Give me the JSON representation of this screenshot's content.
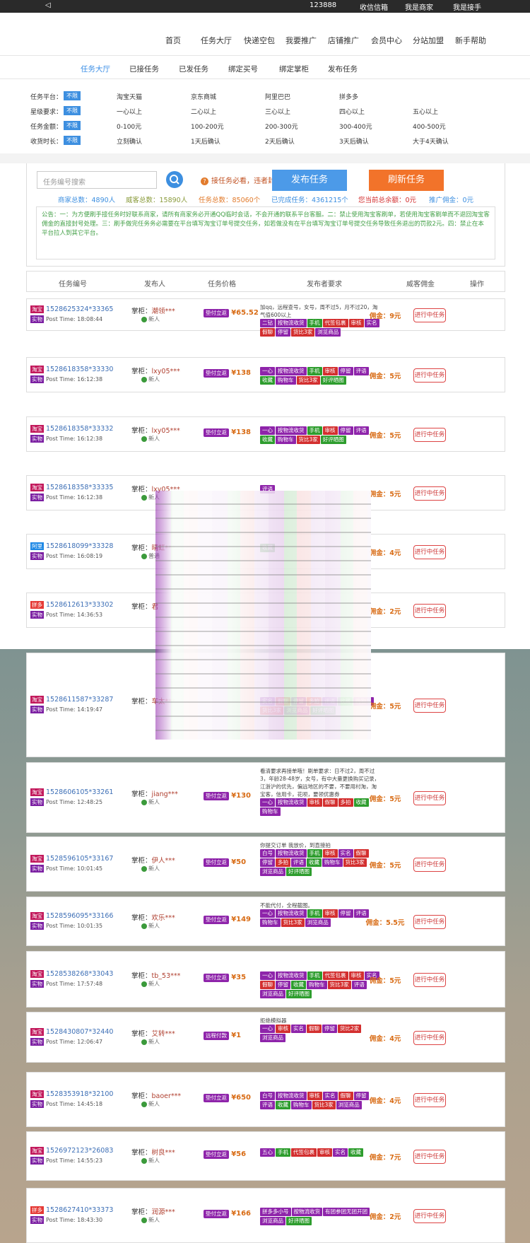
{
  "topbar": {
    "phone": "123888",
    "wechat": "收信信箱",
    "merchant": "我是商家",
    "receiver": "我是接手"
  },
  "nav": [
    "首页",
    "任务大厅",
    "快递空包",
    "我要推广",
    "店铺推广",
    "会员中心",
    "分站加盟",
    "新手帮助"
  ],
  "subnav": [
    "任务大厅",
    "已接任务",
    "已发任务",
    "绑定买号",
    "绑定掌柜",
    "发布任务"
  ],
  "filters": [
    {
      "label": "任务平台：",
      "btn": "不限",
      "opts": [
        "淘宝天猫",
        "京东商城",
        "阿里巴巴",
        "拼多多"
      ]
    },
    {
      "label": "星级要求：",
      "btn": "不限",
      "opts": [
        "一心以上",
        "二心以上",
        "三心以上",
        "四心以上",
        "五心以上"
      ]
    },
    {
      "label": "任务金额：",
      "btn": "不限",
      "opts": [
        "0-100元",
        "100-200元",
        "200-300元",
        "300-400元",
        "400-500元"
      ]
    },
    {
      "label": "收货时长：",
      "btn": "不限",
      "opts": [
        "立刻确认",
        "1天后确认",
        "2天后确认",
        "3天后确认",
        "大于4天确认"
      ]
    }
  ],
  "panel": {
    "search_placeholder": "任务编号搜索",
    "warn": "接任务必看，违者封号",
    "publish": "发布任务",
    "refresh": "刷新任务",
    "stats": [
      "商家总数：4890人",
      "威客总数：15890人",
      "任务总数：85060个",
      "已完成任务：4361215个",
      "您当前总余额：0元",
      "推广佣金：0元"
    ],
    "notice": "公告：一：为方便刷手接任务时好联系商家，请所有商家务必开通QQ临时会话，不会开通的联系平台客服。二：禁止使用淘宝客刷单，若使用淘宝客刷单而不退回淘宝客佣金的直接封号处理。三：刷手做完任务务必需要在平台填写淘宝订单号提交任务，如若做没有在平台填写淘宝订单号提交任务导致任务退出的罚款2元。四：禁止在本平台拉人到其它平台。"
  },
  "thead": [
    "任务编号",
    "发布人",
    "任务价格",
    "发布者要求",
    "威客佣金",
    "操作"
  ],
  "tasks": [
    {
      "plat": "淘宝",
      "type": "实物",
      "no": "1528625324*33365",
      "time": "Post Time: 18:08:44",
      "prefix": "掌柜：",
      "name": "潮领***",
      "level": "新人",
      "pay": "垫付立返",
      "price": "¥65.52",
      "note": "加qq，远程查号，女号，周不过5，月不过20，淘气值600以上",
      "req": [
        [
          "二钻",
          "p"
        ],
        [
          "按物流收货",
          "p"
        ],
        [
          "手机",
          "g"
        ],
        [
          "代签包裹",
          "r"
        ],
        [
          "审核",
          "r"
        ],
        [
          "实名",
          "p"
        ],
        [
          "假聊",
          "r"
        ],
        [
          "停留",
          "p"
        ],
        [
          "货比3家",
          "r"
        ],
        [
          "浏览商品",
          "p"
        ]
      ],
      "com": "佣金：9元",
      "op": "进行中任务"
    },
    {
      "plat": "淘宝",
      "type": "实物",
      "no": "1528618358*33330",
      "time": "Post Time: 16:12:38",
      "prefix": "掌柜：",
      "name": "lxy05***",
      "level": "新人",
      "pay": "垫付立返",
      "price": "¥138",
      "note": "",
      "req": [
        [
          "一心",
          "p"
        ],
        [
          "按物流收货",
          "p"
        ],
        [
          "手机",
          "g"
        ],
        [
          "审核",
          "r"
        ],
        [
          "停留",
          "p"
        ],
        [
          "评语",
          "p"
        ],
        [
          "收藏",
          "g"
        ],
        [
          "购物车",
          "p"
        ],
        [
          "货比3家",
          "r"
        ],
        [
          "好评晒图",
          "g"
        ]
      ],
      "com": "佣金：5元",
      "op": "进行中任务"
    },
    {
      "plat": "淘宝",
      "type": "实物",
      "no": "1528618358*33332",
      "time": "Post Time: 16:12:38",
      "prefix": "掌柜：",
      "name": "lxy05***",
      "level": "新人",
      "pay": "垫付立返",
      "price": "¥138",
      "note": "",
      "req": [
        [
          "一心",
          "p"
        ],
        [
          "按物流收货",
          "p"
        ],
        [
          "手机",
          "g"
        ],
        [
          "审核",
          "r"
        ],
        [
          "停留",
          "p"
        ],
        [
          "评语",
          "p"
        ],
        [
          "收藏",
          "g"
        ],
        [
          "购物车",
          "p"
        ],
        [
          "货比3家",
          "r"
        ],
        [
          "好评晒图",
          "g"
        ]
      ],
      "com": "佣金：5元",
      "op": "进行中任务"
    },
    {
      "plat": "淘宝",
      "type": "实物",
      "no": "1528618358*33335",
      "time": "Post Time: 16:12:38",
      "prefix": "掌柜：",
      "name": "lxy05***",
      "level": "新人",
      "pay": "",
      "price": "",
      "note": "",
      "req": [
        [
          "评语",
          "p"
        ]
      ],
      "com": "佣金：5元",
      "op": "进行中任务"
    },
    {
      "plat": "阿里",
      "type": "实物",
      "no": "1528618099*33328",
      "time": "Post Time: 16:08:19",
      "prefix": "掌柜：",
      "name": "晴虹***",
      "level": "普通",
      "pay": "",
      "price": "",
      "note": "",
      "req": [
        [
          "收藏",
          "g"
        ]
      ],
      "com": "佣金：4元",
      "op": "进行中任务"
    },
    {
      "plat": "拼多",
      "type": "实物",
      "no": "1528612613*33302",
      "time": "Post Time: 14:36:53",
      "prefix": "掌柜：",
      "name": "君",
      "level": "",
      "pay": "",
      "price": "",
      "note": "",
      "req": [],
      "com": "佣金：2元",
      "op": "进行中任务"
    },
    {
      "plat": "淘宝",
      "type": "实物",
      "no": "1528611587*33287",
      "time": "Post Time: 14:19:47",
      "prefix": "掌柜：",
      "name": "车太***",
      "level": "",
      "pay": "",
      "price": "",
      "note": "",
      "req": [
        [
          "实名",
          "p"
        ],
        [
          "假聊",
          "r"
        ],
        [
          "停留",
          "p"
        ],
        [
          "多拍",
          "r"
        ],
        [
          "评语",
          "p"
        ],
        [
          "收藏",
          "g"
        ],
        [
          "购物车",
          "p"
        ],
        [
          "货比3家",
          "r"
        ],
        [
          "浏览商品",
          "p"
        ],
        [
          "好评晒图",
          "g"
        ]
      ],
      "com": "佣金：5元",
      "op": "进行中任务"
    },
    {
      "plat": "淘宝",
      "type": "实物",
      "no": "1528606105*33261",
      "time": "Post Time: 12:48:25",
      "prefix": "掌柜：",
      "name": "jiang***",
      "level": "新人",
      "pay": "垫付立返",
      "price": "¥130",
      "note": "看清要求再接单哦！刷单要求：日不过2，周不过3，年龄28-48岁，女号，有中大量更换购买记录，江浙沪的优先，偏远地区的不要，不要用村淘，淘宝客，信用卡，花呗，要领优惠券",
      "req": [
        [
          "一心",
          "p"
        ],
        [
          "按物流收货",
          "p"
        ],
        [
          "审核",
          "r"
        ],
        [
          "假聊",
          "r"
        ],
        [
          "多拍",
          "r"
        ],
        [
          "收藏",
          "g"
        ],
        [
          "购物车",
          "p"
        ]
      ],
      "com": "佣金：5元",
      "op": "进行中任务"
    },
    {
      "plat": "淘宝",
      "type": "实物",
      "no": "1528596105*33167",
      "time": "Post Time: 10:01:45",
      "prefix": "掌柜：",
      "name": "伊人***",
      "level": "新人",
      "pay": "垫付立返",
      "price": "¥50",
      "note": "你提交订单 我放价，到直接拍",
      "req": [
        [
          "白号",
          "p"
        ],
        [
          "按物流收货",
          "p"
        ],
        [
          "手机",
          "g"
        ],
        [
          "审核",
          "r"
        ],
        [
          "实名",
          "p"
        ],
        [
          "假聊",
          "r"
        ],
        [
          "停留",
          "p"
        ],
        [
          "多拍",
          "r"
        ],
        [
          "评语",
          "p"
        ],
        [
          "收藏",
          "g"
        ],
        [
          "购物车",
          "p"
        ],
        [
          "货比3家",
          "r"
        ],
        [
          "浏览商品",
          "p"
        ],
        [
          "好评晒图",
          "g"
        ]
      ],
      "com": "佣金：5元",
      "op": "进行中任务"
    },
    {
      "plat": "淘宝",
      "type": "实物",
      "no": "1528596095*33166",
      "time": "Post Time: 10:01:35",
      "prefix": "掌柜：",
      "name": "欢乐***",
      "level": "新人",
      "pay": "垫付立返",
      "price": "¥149",
      "note": "不能代付，全程截图。",
      "req": [
        [
          "一心",
          "p"
        ],
        [
          "按物流收货",
          "p"
        ],
        [
          "手机",
          "g"
        ],
        [
          "审核",
          "r"
        ],
        [
          "停留",
          "p"
        ],
        [
          "评语",
          "p"
        ],
        [
          "购物车",
          "p"
        ],
        [
          "货比3家",
          "r"
        ],
        [
          "浏览商品",
          "p"
        ]
      ],
      "com": "佣金：5.5元",
      "op": "进行中任务"
    },
    {
      "plat": "淘宝",
      "type": "实物",
      "no": "1528538268*33043",
      "time": "Post Time: 17:57:48",
      "prefix": "掌柜：",
      "name": "tb_53***",
      "level": "新人",
      "pay": "垫付立返",
      "price": "¥35",
      "note": "",
      "req": [
        [
          "一心",
          "p"
        ],
        [
          "按物流收货",
          "p"
        ],
        [
          "手机",
          "g"
        ],
        [
          "代签包裹",
          "r"
        ],
        [
          "审核",
          "r"
        ],
        [
          "实名",
          "p"
        ],
        [
          "假聊",
          "r"
        ],
        [
          "停留",
          "p"
        ],
        [
          "收藏",
          "g"
        ],
        [
          "购物车",
          "p"
        ],
        [
          "货比3家",
          "r"
        ],
        [
          "评语",
          "p"
        ],
        [
          "浏览商品",
          "p"
        ],
        [
          "好评晒图",
          "g"
        ]
      ],
      "com": "佣金：5元",
      "op": "进行中任务"
    },
    {
      "plat": "淘宝",
      "type": "实物",
      "no": "1528430807*32440",
      "time": "Post Time: 12:06:47",
      "prefix": "掌柜：",
      "name": "艾转***",
      "level": "新人",
      "pay": "远程付款",
      "price": "¥1",
      "note": "拒绝模拟器",
      "req": [
        [
          "一心",
          "p"
        ],
        [
          "审核",
          "r"
        ],
        [
          "实名",
          "p"
        ],
        [
          "假聊",
          "r"
        ],
        [
          "停留",
          "p"
        ],
        [
          "货比2家",
          "r"
        ],
        [
          "浏览商品",
          "p"
        ]
      ],
      "com": "佣金：4元",
      "op": "进行中任务"
    },
    {
      "plat": "淘宝",
      "type": "实物",
      "no": "1528353918*32100",
      "time": "Post Time: 14:45:18",
      "prefix": "掌柜：",
      "name": "baoer***",
      "level": "新人",
      "pay": "垫付立返",
      "price": "¥650",
      "note": "",
      "req": [
        [
          "白号",
          "p"
        ],
        [
          "按物流收货",
          "p"
        ],
        [
          "审核",
          "r"
        ],
        [
          "实名",
          "p"
        ],
        [
          "假聊",
          "r"
        ],
        [
          "停留",
          "p"
        ],
        [
          "评语",
          "p"
        ],
        [
          "收藏",
          "g"
        ],
        [
          "购物车",
          "p"
        ],
        [
          "货比3家",
          "r"
        ],
        [
          "浏览商品",
          "p"
        ]
      ],
      "com": "佣金：4元",
      "op": "进行中任务"
    },
    {
      "plat": "淘宝",
      "type": "实物",
      "no": "1526972123*26083",
      "time": "Post Time: 14:55:23",
      "prefix": "掌柜：",
      "name": "树良***",
      "level": "新人",
      "pay": "垫付立返",
      "price": "¥56",
      "note": "",
      "req": [
        [
          "五心",
          "p"
        ],
        [
          "手机",
          "g"
        ],
        [
          "代签包裹",
          "r"
        ],
        [
          "审核",
          "r"
        ],
        [
          "实名",
          "p"
        ],
        [
          "收藏",
          "g"
        ]
      ],
      "com": "佣金：7元",
      "op": "进行中任务"
    },
    {
      "plat": "拼多",
      "type": "实物",
      "no": "1528627410*33373",
      "time": "Post Time: 18:43:30",
      "prefix": "掌柜：",
      "name": "润源***",
      "level": "新人",
      "pay": "垫付立返",
      "price": "¥166",
      "note": "",
      "req": [
        [
          "拼多多小号",
          "p"
        ],
        [
          "按物流收货",
          "p"
        ],
        [
          "有团参团无团开团",
          "p"
        ],
        [
          "浏览商品",
          "p"
        ],
        [
          "好评晒图",
          "g"
        ]
      ],
      "com": "佣金：2元",
      "op": "进行中任务"
    }
  ]
}
